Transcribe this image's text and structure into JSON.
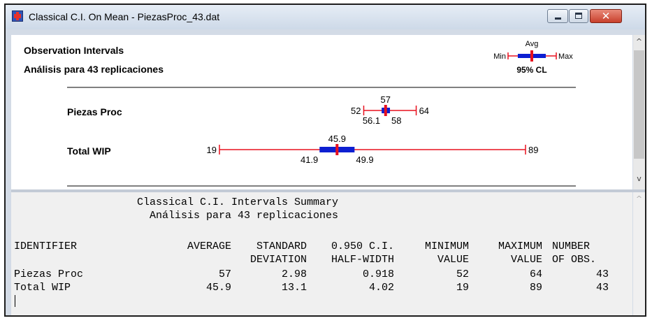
{
  "window": {
    "title": "Classical C.I. On Mean - PiezasProc_43.dat",
    "controls": {
      "minimize": "—",
      "maximize": "□",
      "close": "✕"
    }
  },
  "plot": {
    "heading": "Observation Intervals",
    "subheading": "Análisis para 43 replicaciones",
    "legend": {
      "avg": "Avg",
      "min": "Min",
      "max": "Max",
      "cl": "95% CL"
    },
    "scale": {
      "min": 19,
      "max": 89
    },
    "series": [
      {
        "name": "Piezas Proc",
        "min": 52,
        "max": 64,
        "ci_low": 56.1,
        "ci_high": 58,
        "avg": 57,
        "labels": {
          "min": "52",
          "max": "64",
          "avg": "57",
          "lo": "56.1",
          "hi": "58"
        }
      },
      {
        "name": "Total WIP",
        "min": 19,
        "max": 89,
        "ci_low": 41.9,
        "ci_high": 49.9,
        "avg": 45.9,
        "labels": {
          "min": "19",
          "max": "89",
          "avg": "45.9",
          "lo": "41.9",
          "hi": "49.9"
        }
      }
    ],
    "colors": {
      "range": "#e8101e",
      "ci": "#0d1fd1",
      "avg": "#e8101e"
    }
  },
  "summary": {
    "title": "Classical C.I. Intervals Summary",
    "subtitle": "Análisis para 43 replicaciones",
    "headers": {
      "identifier": "IDENTIFIER",
      "average": "AVERAGE",
      "std1": "STANDARD",
      "std2": "DEVIATION",
      "hw1": "0.950 C.I.",
      "hw2": "HALF-WIDTH",
      "min1": "MINIMUM",
      "min2": "VALUE",
      "max1": "MAXIMUM",
      "max2": "VALUE",
      "n1": "NUMBER",
      "n2": "OF OBS."
    },
    "rows": [
      {
        "identifier": "Piezas Proc",
        "average": "57",
        "std": "2.98",
        "halfwidth": "0.918",
        "min": "52",
        "max": "64",
        "n": "43"
      },
      {
        "identifier": "Total WIP",
        "average": "45.9",
        "std": "13.1",
        "halfwidth": "4.02",
        "min": "19",
        "max": "89",
        "n": "43"
      }
    ]
  }
}
